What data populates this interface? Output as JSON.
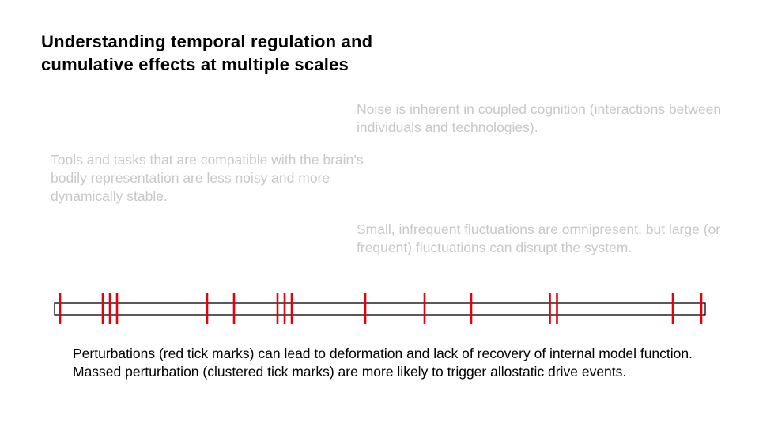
{
  "title": "Understanding temporal regulation and cumulative effects at multiple scales",
  "notes": {
    "coupled_cognition": "Noise is inherent in coupled cognition (interactions between individuals and technologies).",
    "tools_tasks": "Tools and tasks that are compatible with the brain’s bodily representation are less noisy and more dynamically stable.",
    "fluctuations": "Small, infrequent fluctuations are omnipresent, but large (or frequent) fluctuations can disrupt the system."
  },
  "caption": "Perturbations (red tick marks) can lead to deformation and lack of recovery of internal model function. Massed perturbation (clustered tick marks) are more likely to trigger allostatic drive events.",
  "timeline": {
    "tick_color": "#e3000f",
    "bar_color": "#000000",
    "ticks": [
      {
        "label": "single",
        "count": 1
      },
      {
        "label": "cluster",
        "count": 3
      },
      {
        "label": "single",
        "count": 1
      },
      {
        "label": "single",
        "count": 1
      },
      {
        "label": "cluster",
        "count": 3
      },
      {
        "label": "single",
        "count": 1
      },
      {
        "label": "single",
        "count": 1
      },
      {
        "label": "single",
        "count": 1
      },
      {
        "label": "cluster",
        "count": 2
      },
      {
        "label": "single",
        "count": 1
      },
      {
        "label": "single",
        "count": 1
      }
    ]
  }
}
